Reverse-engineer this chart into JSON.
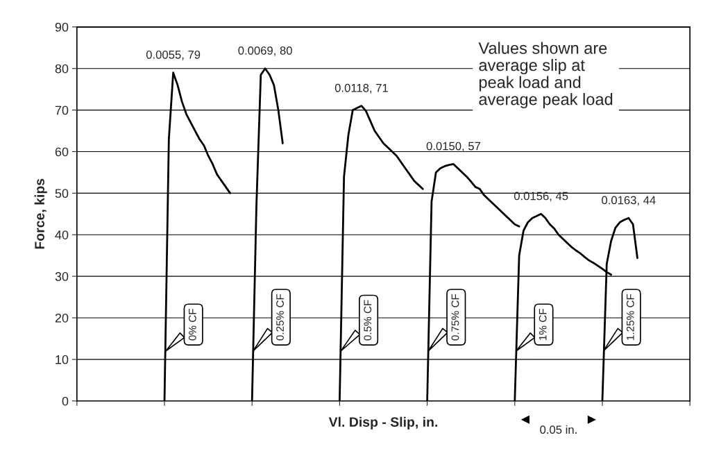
{
  "chart_data": {
    "type": "line",
    "xlabel": "Vl. Disp - Slip, in.",
    "ylabel": "Force, kips",
    "categories": [
      null,
      null,
      null,
      null,
      null,
      null,
      null,
      null,
      null,
      null,
      null,
      null,
      null,
      null,
      null,
      null,
      null,
      null,
      null,
      null,
      null,
      null,
      null,
      null,
      null,
      null,
      null,
      null,
      null,
      null,
      null,
      null,
      null,
      null,
      null,
      null,
      null,
      null,
      null,
      null,
      null,
      null,
      null,
      null,
      null,
      null,
      null,
      null,
      null,
      null,
      null,
      null,
      null,
      null,
      null,
      null,
      null,
      null,
      null,
      null,
      null,
      null,
      null,
      null,
      null,
      null,
      null,
      null,
      null,
      null,
      null,
      null,
      null,
      null,
      null,
      null,
      null,
      null,
      null,
      null,
      null,
      null,
      null,
      null,
      null,
      null,
      null,
      null,
      null,
      null,
      null,
      null,
      null,
      null,
      null,
      null,
      null,
      null,
      null,
      null,
      null,
      null,
      null,
      null,
      null,
      null,
      null,
      null,
      null,
      null,
      null,
      null,
      null,
      null,
      null,
      null,
      null,
      null,
      null,
      null,
      null,
      null,
      null,
      null,
      null,
      null,
      null,
      null,
      null,
      null,
      null,
      null,
      null,
      null,
      null,
      null,
      null,
      null,
      null,
      null,
      null
    ],
    "ylim": [
      0,
      90
    ],
    "yticks": [
      0,
      10,
      20,
      30,
      40,
      50,
      60,
      70,
      80,
      90
    ],
    "grid": "y",
    "marker": "none",
    "line_style": "solid",
    "series": [
      {
        "name": "0% CF",
        "color": "#000000",
        "values": [
          null,
          null,
          null,
          null,
          null,
          null,
          null,
          null,
          null,
          null,
          null,
          null,
          null,
          null,
          null,
          null,
          null,
          null,
          null,
          null,
          0,
          63,
          79,
          76,
          72,
          69,
          67,
          65,
          63,
          61.5,
          59,
          57,
          54.5,
          53,
          51.5,
          50,
          null,
          null,
          null,
          null,
          null,
          null,
          null,
          null,
          null,
          null,
          null,
          null,
          null,
          null,
          null,
          null,
          null,
          null,
          null,
          null,
          null,
          null,
          null,
          null,
          null,
          null,
          null,
          null,
          null,
          null,
          null,
          null,
          null,
          null,
          null,
          null,
          null,
          null,
          null,
          null,
          null,
          null,
          null,
          null,
          null,
          null,
          null,
          null,
          null,
          null,
          null,
          null,
          null,
          null,
          null,
          null,
          null,
          null,
          null,
          null,
          null,
          null,
          null,
          null,
          null,
          null,
          null,
          null,
          null,
          null,
          null,
          null,
          null,
          null,
          null,
          null,
          null,
          null,
          null,
          null,
          null,
          null,
          null,
          null,
          null,
          null,
          null,
          null,
          null,
          null,
          null,
          null,
          null,
          null,
          null,
          null,
          null,
          null,
          null,
          null,
          null,
          null,
          null,
          null,
          null
        ]
      },
      {
        "name": "0.25% CF",
        "color": "#000000",
        "values": [
          null,
          null,
          null,
          null,
          null,
          null,
          null,
          null,
          null,
          null,
          null,
          null,
          null,
          null,
          null,
          null,
          null,
          null,
          null,
          null,
          null,
          null,
          null,
          null,
          null,
          null,
          null,
          null,
          null,
          null,
          null,
          null,
          null,
          null,
          null,
          null,
          null,
          null,
          null,
          null,
          0,
          47,
          78.5,
          80,
          78.5,
          76,
          70,
          62,
          null,
          null,
          null,
          null,
          null,
          null,
          null,
          null,
          null,
          null,
          null,
          null,
          null,
          null,
          null,
          null,
          null,
          null,
          null,
          null,
          null,
          null,
          null,
          null,
          null,
          null,
          null,
          null,
          null,
          null,
          null,
          null,
          null,
          null,
          null,
          null,
          null,
          null,
          null,
          null,
          null,
          null,
          null,
          null,
          null,
          null,
          null,
          null,
          null,
          null,
          null,
          null,
          null,
          null,
          null,
          null,
          null,
          null,
          null,
          null,
          null,
          null,
          null,
          null,
          null,
          null,
          null,
          null,
          null,
          null,
          null,
          null,
          null,
          null,
          null,
          null,
          null,
          null,
          null,
          null,
          null,
          null,
          null,
          null,
          null,
          null,
          null,
          null,
          null,
          null,
          null,
          null,
          null
        ]
      },
      {
        "name": "0.5% CF",
        "color": "#000000",
        "values": [
          null,
          null,
          null,
          null,
          null,
          null,
          null,
          null,
          null,
          null,
          null,
          null,
          null,
          null,
          null,
          null,
          null,
          null,
          null,
          null,
          null,
          null,
          null,
          null,
          null,
          null,
          null,
          null,
          null,
          null,
          null,
          null,
          null,
          null,
          null,
          null,
          null,
          null,
          null,
          null,
          null,
          null,
          null,
          null,
          null,
          null,
          null,
          null,
          null,
          null,
          null,
          null,
          null,
          null,
          null,
          null,
          null,
          null,
          null,
          null,
          0,
          54,
          64,
          70,
          70.5,
          71,
          69.8,
          67.4,
          65,
          63.5,
          62,
          61,
          60,
          59,
          57.5,
          56,
          54.5,
          53,
          52,
          51,
          null,
          null,
          null,
          null,
          null,
          null,
          null,
          null,
          null,
          null,
          null,
          null,
          null,
          null,
          null,
          null,
          null,
          null,
          null,
          null,
          null,
          null,
          null,
          null,
          null,
          null,
          null,
          null,
          null,
          null,
          null,
          null,
          null,
          null,
          null,
          null,
          null,
          null,
          null,
          null,
          null,
          null,
          null,
          null,
          null,
          null,
          null,
          null,
          null,
          null,
          null,
          null,
          null,
          null,
          null,
          null,
          null,
          null,
          null,
          null,
          null
        ]
      },
      {
        "name": "0.75% CF",
        "color": "#000000",
        "values": [
          null,
          null,
          null,
          null,
          null,
          null,
          null,
          null,
          null,
          null,
          null,
          null,
          null,
          null,
          null,
          null,
          null,
          null,
          null,
          null,
          null,
          null,
          null,
          null,
          null,
          null,
          null,
          null,
          null,
          null,
          null,
          null,
          null,
          null,
          null,
          null,
          null,
          null,
          null,
          null,
          null,
          null,
          null,
          null,
          null,
          null,
          null,
          null,
          null,
          null,
          null,
          null,
          null,
          null,
          null,
          null,
          null,
          null,
          null,
          null,
          null,
          null,
          null,
          null,
          null,
          null,
          null,
          null,
          null,
          null,
          null,
          null,
          null,
          null,
          null,
          null,
          null,
          null,
          null,
          null,
          0,
          48,
          55,
          56,
          56.5,
          56.8,
          57,
          56,
          55,
          54,
          52.8,
          51.5,
          51,
          49.5,
          48.5,
          47.5,
          46.5,
          45.5,
          44.5,
          43.5,
          42.5,
          42,
          null,
          null,
          null,
          null,
          null,
          null,
          null,
          null,
          null,
          null,
          null,
          null,
          null,
          null,
          null,
          null,
          null,
          null,
          null,
          null,
          null,
          null,
          null,
          null,
          null,
          null,
          null,
          null,
          null,
          null,
          null,
          null,
          null,
          null,
          null,
          null,
          null,
          null,
          null
        ]
      },
      {
        "name": "1% CF",
        "color": "#000000",
        "values": [
          null,
          null,
          null,
          null,
          null,
          null,
          null,
          null,
          null,
          null,
          null,
          null,
          null,
          null,
          null,
          null,
          null,
          null,
          null,
          null,
          null,
          null,
          null,
          null,
          null,
          null,
          null,
          null,
          null,
          null,
          null,
          null,
          null,
          null,
          null,
          null,
          null,
          null,
          null,
          null,
          null,
          null,
          null,
          null,
          null,
          null,
          null,
          null,
          null,
          null,
          null,
          null,
          null,
          null,
          null,
          null,
          null,
          null,
          null,
          null,
          null,
          null,
          null,
          null,
          null,
          null,
          null,
          null,
          null,
          null,
          null,
          null,
          null,
          null,
          null,
          null,
          null,
          null,
          null,
          null,
          null,
          null,
          null,
          null,
          null,
          null,
          null,
          null,
          null,
          null,
          null,
          null,
          null,
          null,
          null,
          null,
          null,
          null,
          null,
          null,
          0,
          35,
          41,
          43,
          44,
          44.5,
          45,
          44,
          42.5,
          41.5,
          40,
          39,
          38,
          37,
          36.2,
          35.5,
          34.6,
          33.8,
          33.2,
          32.5,
          31.8,
          31,
          30.4,
          null,
          null,
          null,
          null,
          null,
          null,
          null,
          null,
          null,
          null,
          null,
          null,
          null,
          null,
          null,
          null,
          null,
          null
        ]
      },
      {
        "name": "1.25% CF",
        "color": "#000000",
        "values": [
          null,
          null,
          null,
          null,
          null,
          null,
          null,
          null,
          null,
          null,
          null,
          null,
          null,
          null,
          null,
          null,
          null,
          null,
          null,
          null,
          null,
          null,
          null,
          null,
          null,
          null,
          null,
          null,
          null,
          null,
          null,
          null,
          null,
          null,
          null,
          null,
          null,
          null,
          null,
          null,
          null,
          null,
          null,
          null,
          null,
          null,
          null,
          null,
          null,
          null,
          null,
          null,
          null,
          null,
          null,
          null,
          null,
          null,
          null,
          null,
          null,
          null,
          null,
          null,
          null,
          null,
          null,
          null,
          null,
          null,
          null,
          null,
          null,
          null,
          null,
          null,
          null,
          null,
          null,
          null,
          null,
          null,
          null,
          null,
          null,
          null,
          null,
          null,
          null,
          null,
          null,
          null,
          null,
          null,
          null,
          null,
          null,
          null,
          null,
          null,
          null,
          null,
          null,
          null,
          null,
          null,
          null,
          null,
          null,
          null,
          null,
          null,
          null,
          null,
          null,
          null,
          null,
          null,
          null,
          null,
          0,
          33,
          38.5,
          41.7,
          43,
          43.6,
          44,
          42.5,
          34.4,
          null,
          null,
          null,
          null,
          null,
          null,
          null,
          null,
          null,
          null,
          null,
          null
        ]
      }
    ],
    "annotations": [
      {
        "text": "0.0055, 79",
        "y": 79
      },
      {
        "text": "0.0069, 80",
        "y": 80
      },
      {
        "text": "0.0118, 71",
        "y": 71
      },
      {
        "text": "0.0150, 57",
        "y": 57
      },
      {
        "text": "0.0156, 45",
        "y": 45
      },
      {
        "text": "0.0163, 44",
        "y": 44
      },
      "Values shown are\naverage slip at\npeak load and\naverage peak load",
      "0.05 in."
    ]
  }
}
